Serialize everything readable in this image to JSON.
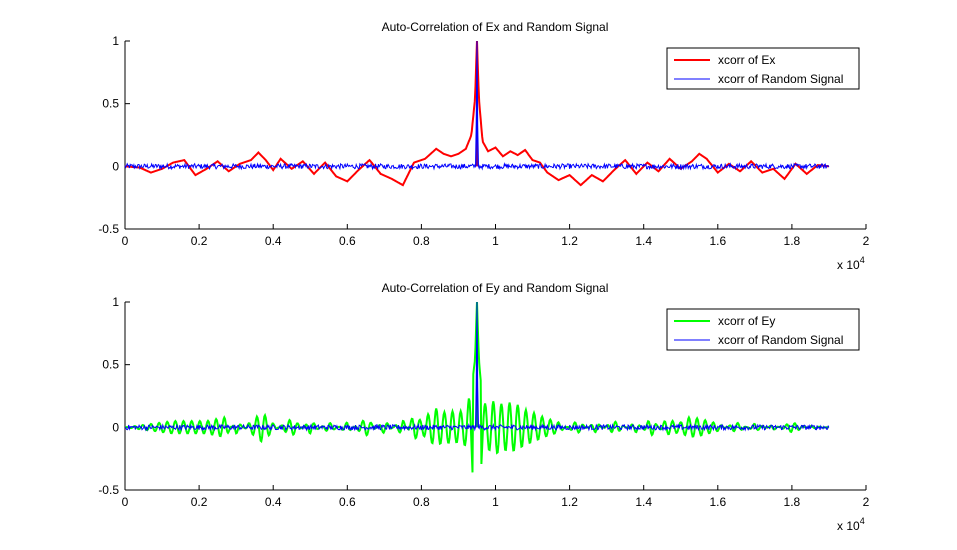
{
  "chart_data": [
    {
      "type": "line",
      "title": "Auto-Correlation of Ex and Random Signal",
      "xlabel": "",
      "ylabel": "",
      "x_multiplier_label": "x 10",
      "x_multiplier_exponent": "4",
      "xlim": [
        0,
        20000
      ],
      "ylim": [
        -0.5,
        1
      ],
      "xticks": [
        0,
        2000,
        4000,
        6000,
        8000,
        10000,
        12000,
        14000,
        16000,
        18000,
        20000
      ],
      "xtick_labels": [
        "0",
        "0.2",
        "0.4",
        "0.6",
        "0.8",
        "1",
        "1.2",
        "1.4",
        "1.6",
        "1.8",
        "2"
      ],
      "yticks": [
        -0.5,
        0,
        0.5,
        1
      ],
      "ytick_labels": [
        "-0.5",
        "0",
        "0.5",
        "1"
      ],
      "grid": false,
      "legend_position": "top-right",
      "series": [
        {
          "name": "xcorr of Ex",
          "color": "#ff0000",
          "x": [
            0,
            400,
            700,
            1000,
            1300,
            1600,
            1900,
            2200,
            2500,
            2800,
            3100,
            3400,
            3600,
            3800,
            4000,
            4200,
            4500,
            4800,
            5100,
            5400,
            5700,
            6000,
            6300,
            6600,
            6900,
            7200,
            7500,
            7800,
            8100,
            8400,
            8600,
            8800,
            9000,
            9200,
            9350,
            9450,
            9500,
            9550,
            9650,
            9800,
            10000,
            10200,
            10400,
            10600,
            10800,
            11000,
            11200,
            11400,
            11700,
            12000,
            12300,
            12600,
            12900,
            13200,
            13500,
            13800,
            14100,
            14400,
            14700,
            15000,
            15300,
            15500,
            15700,
            16000,
            16300,
            16600,
            16900,
            17200,
            17500,
            17800,
            18100,
            18400,
            18700,
            19000
          ],
          "values": [
            0,
            -0.01,
            -0.05,
            -0.02,
            0.03,
            0.05,
            -0.07,
            -0.02,
            0.04,
            -0.04,
            0.02,
            0.05,
            0.11,
            0.05,
            -0.03,
            0.06,
            -0.02,
            0.04,
            -0.06,
            0.03,
            -0.08,
            -0.12,
            -0.03,
            0.05,
            -0.06,
            -0.1,
            -0.15,
            0.03,
            0.06,
            0.14,
            0.1,
            0.08,
            0.1,
            0.14,
            0.25,
            0.55,
            1.0,
            0.55,
            0.2,
            0.12,
            0.15,
            0.08,
            0.12,
            0.09,
            0.13,
            0.05,
            0.03,
            -0.05,
            -0.11,
            -0.07,
            -0.15,
            -0.07,
            -0.12,
            -0.03,
            0.05,
            -0.06,
            0.03,
            -0.04,
            0.06,
            -0.02,
            0.04,
            0.1,
            0.06,
            -0.05,
            0.02,
            -0.04,
            0.04,
            -0.05,
            -0.02,
            -0.1,
            0.02,
            -0.06,
            0.01,
            0
          ]
        },
        {
          "name": "xcorr of Random Signal",
          "color": "#0000ff",
          "x": [
            0,
            9470,
            9500,
            9530,
            19000
          ],
          "values": [
            0,
            0,
            1.0,
            0,
            0
          ],
          "noise_amplitude": 0.02
        }
      ]
    },
    {
      "type": "line",
      "title": "Auto-Correlation of Ey and Random Signal",
      "xlabel": "",
      "ylabel": "",
      "x_multiplier_label": "x 10",
      "x_multiplier_exponent": "4",
      "xlim": [
        0,
        20000
      ],
      "ylim": [
        -0.5,
        1
      ],
      "xticks": [
        0,
        2000,
        4000,
        6000,
        8000,
        10000,
        12000,
        14000,
        16000,
        18000,
        20000
      ],
      "xtick_labels": [
        "0",
        "0.2",
        "0.4",
        "0.6",
        "0.8",
        "1",
        "1.2",
        "1.4",
        "1.6",
        "1.8",
        "2"
      ],
      "yticks": [
        -0.5,
        0,
        0.5,
        1
      ],
      "ytick_labels": [
        "-0.5",
        "0",
        "0.5",
        "1"
      ],
      "grid": false,
      "legend_position": "top-right",
      "series": [
        {
          "name": "xcorr of Ey",
          "color": "#00ff00",
          "x": [
            0,
            1300,
            2200,
            2700,
            3000,
            3700,
            4000,
            4500,
            5000,
            5500,
            6000,
            6500,
            7000,
            7500,
            7800,
            8000,
            8200,
            8400,
            8600,
            8800,
            9000,
            9200,
            9350,
            9450,
            9500,
            9550,
            9650,
            9800,
            10000,
            10200,
            10400,
            10600,
            10800,
            11000,
            11300,
            11700,
            12200,
            12700,
            13200,
            13800,
            14200,
            14600,
            15000,
            15200,
            15500,
            16000,
            16500,
            17000,
            17500,
            18000,
            18500,
            19000
          ],
          "values": [
            0,
            0.05,
            0.05,
            0.08,
            -0.05,
            0.12,
            0.03,
            -0.07,
            0.05,
            -0.04,
            0.04,
            -0.07,
            0.05,
            -0.06,
            0.1,
            0.05,
            0.11,
            0.15,
            0.12,
            0.13,
            0.12,
            0.15,
            0.3,
            0.55,
            1.0,
            0.55,
            0.2,
            0.18,
            0.22,
            0.18,
            0.2,
            0.18,
            0.14,
            0.12,
            0.08,
            0.04,
            -0.05,
            0.04,
            -0.05,
            0.04,
            -0.07,
            0.06,
            0.04,
            0.08,
            0.07,
            0.03,
            -0.04,
            0.03,
            -0.02,
            0.04,
            -0.01,
            0
          ],
          "oscillation_period": 220,
          "oscillation_mode": "envelope"
        },
        {
          "name": "xcorr of Random Signal",
          "color": "#0000ff",
          "x": [
            0,
            9470,
            9500,
            9530,
            19000
          ],
          "values": [
            0,
            0,
            1.0,
            0,
            0
          ],
          "noise_amplitude": 0.02
        }
      ]
    }
  ]
}
